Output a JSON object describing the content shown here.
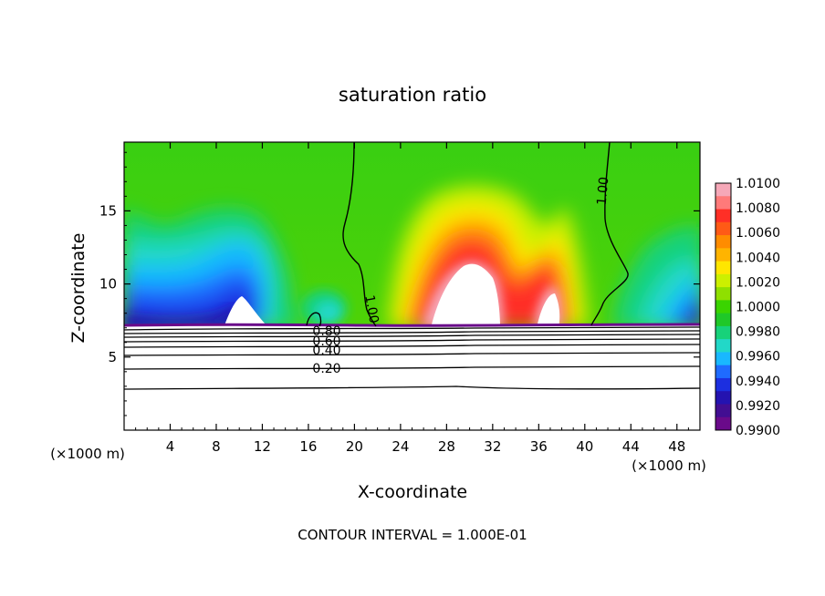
{
  "chart_data": {
    "type": "heatmap",
    "title": "saturation ratio",
    "xlabel": "X-coordinate",
    "ylabel": "Z-coordinate",
    "x_unit_left": "(×1000 m)",
    "x_unit_right": "(×1000 m)",
    "xlim": [
      0,
      50
    ],
    "ylim": [
      0,
      19.7
    ],
    "x_ticks": [
      "4",
      "8",
      "12",
      "16",
      "20",
      "24",
      "28",
      "32",
      "36",
      "40",
      "44",
      "48"
    ],
    "x_tick_values": [
      4,
      8,
      12,
      16,
      20,
      24,
      28,
      32,
      36,
      40,
      44,
      48
    ],
    "y_ticks": [
      "5",
      "10",
      "15"
    ],
    "y_tick_values": [
      5,
      10,
      15
    ],
    "colorbar": {
      "levels": [
        "1.0100",
        "1.0080",
        "1.0060",
        "1.0040",
        "1.0020",
        "1.0000",
        "0.9980",
        "0.9960",
        "0.9940",
        "0.9920",
        "0.9900"
      ],
      "colors": [
        "#f6a8b8",
        "#ff7a7a",
        "#ff2f26",
        "#ff5a16",
        "#ff8c00",
        "#ffb400",
        "#ffe600",
        "#ccf000",
        "#8fe000",
        "#3ad400",
        "#1fc828",
        "#17d27a",
        "#22d8c8",
        "#19b8ff",
        "#1f6bff",
        "#1c2fe0",
        "#2413b0",
        "#420e92",
        "#6a0a8a"
      ]
    },
    "contour_labels": [
      "1.00",
      "1.00",
      "0.80",
      "0.60",
      "0.40",
      "0.20"
    ],
    "interval_text": "CONTOUR INTERVAL = 1.000E-01",
    "summary": {
      "supersaturated_core_x": [
        24,
        34
      ],
      "supersaturated_core_peak_z": 12,
      "secondary_core_x": [
        34.5,
        38.5
      ],
      "subsaturated_bands": [
        [
          0,
          14
        ],
        [
          42,
          50
        ]
      ],
      "lower_boundary_z": 7.4
    }
  }
}
